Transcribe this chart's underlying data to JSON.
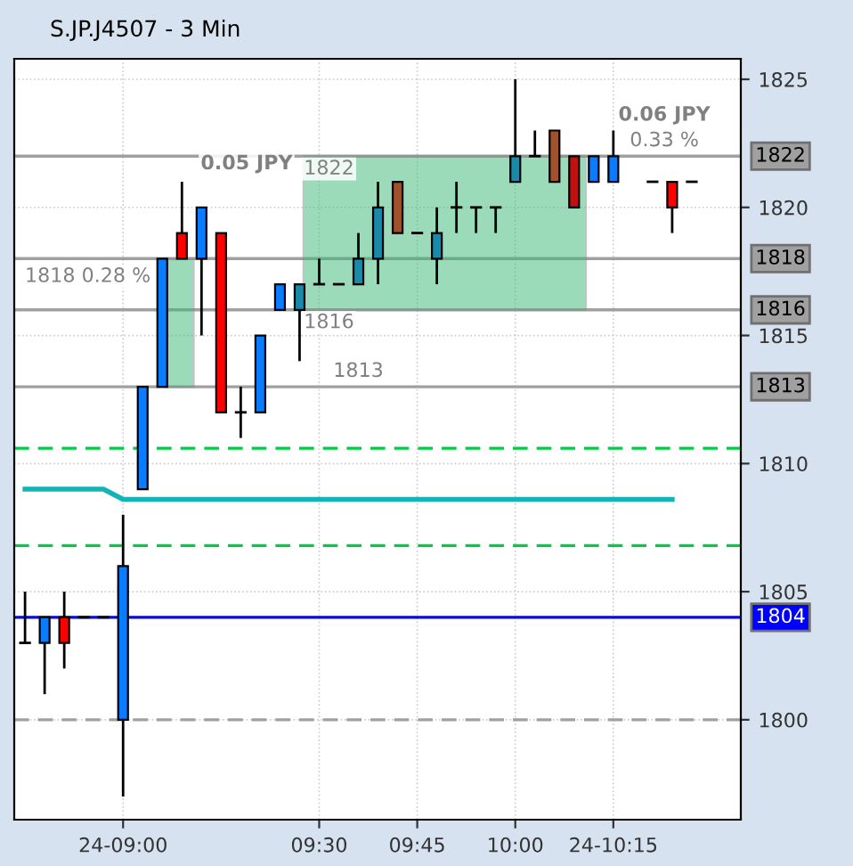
{
  "chart_data": {
    "type": "candlestick",
    "title": "S.JP.J4507 - 3 Min",
    "categories": [
      null,
      null,
      null,
      null,
      null,
      "24-09:00",
      null,
      null,
      null,
      null,
      null,
      null,
      null,
      null,
      null,
      "09:30",
      null,
      null,
      null,
      null,
      "09:45",
      null,
      null,
      null,
      null,
      "10:00",
      null,
      null,
      null,
      null,
      "24-10:15",
      null,
      null,
      null,
      null
    ],
    "ohlc": [
      [
        1803,
        1805,
        1803,
        1803
      ],
      [
        1803,
        1804,
        1801,
        1804
      ],
      [
        1804,
        1805,
        1802,
        1803
      ],
      [
        1804,
        1804,
        1804,
        1804
      ],
      [
        1804,
        1804,
        1804,
        1804
      ],
      [
        1800,
        1808,
        1797,
        1806
      ],
      [
        1809,
        1813,
        1809,
        1813
      ],
      [
        1813,
        1818,
        1813,
        1818
      ],
      [
        1819,
        1821,
        1818,
        1818
      ],
      [
        1818,
        1820,
        1815,
        1820
      ],
      [
        1819,
        1819,
        1812,
        1812
      ],
      [
        1812,
        1813,
        1811,
        1812
      ],
      [
        1812,
        1815,
        1812,
        1815
      ],
      [
        1816,
        1817,
        1816,
        1817
      ],
      [
        1816,
        1817,
        1814,
        1817
      ],
      [
        1817,
        1818,
        1817,
        1817
      ],
      [
        1817,
        1817,
        1817,
        1817
      ],
      [
        1817,
        1819,
        1817,
        1818
      ],
      [
        1818,
        1821,
        1817,
        1820
      ],
      [
        1821,
        1821,
        1819,
        1819
      ],
      [
        1819,
        1819,
        1819,
        1819
      ],
      [
        1818,
        1820,
        1817,
        1819
      ],
      [
        1820,
        1821,
        1819,
        1820
      ],
      [
        1820,
        1820,
        1819,
        1820
      ],
      [
        1820,
        1820,
        1819,
        1820
      ],
      [
        1821,
        1825,
        1821,
        1822
      ],
      [
        1822,
        1823,
        1822,
        1822
      ],
      [
        1823,
        1823,
        1821,
        1821
      ],
      [
        1822,
        1822,
        1820,
        1820
      ],
      [
        1821,
        1822,
        1821,
        1822
      ],
      [
        1821,
        1823,
        1821,
        1822
      ],
      null,
      [
        1821,
        1821,
        1821,
        1821
      ],
      [
        1821,
        1821,
        1819,
        1820
      ],
      [
        1821,
        1821,
        1821,
        1821
      ]
    ],
    "colors": [
      "#000000",
      "#0a7cff",
      "#ff0000",
      "#000000",
      "#000000",
      "#0a7cff",
      "#0a7cff",
      "#0a7cff",
      "#ff0000",
      "#0a7cff",
      "#ff0000",
      "#000000",
      "#0a7cff",
      "#0a7cff",
      "#1a8aa8",
      "#000000",
      "#000000",
      "#1a8aa8",
      "#1a8aa8",
      "#a0522d",
      "#000000",
      "#1a8aa8",
      "#000000",
      "#000000",
      "#000000",
      "#1a8aa8",
      "#000000",
      "#a0522d",
      "#c01010",
      "#0a7cff",
      "#0a7cff",
      null,
      "#000000",
      "#ff0000",
      "#000000"
    ],
    "series": [
      {
        "type": "line",
        "color": "#14b4b4",
        "values": [
          1809,
          1809,
          1809,
          1809,
          1809,
          1808.6,
          1808.6,
          1808.6,
          1808.6,
          1808.6,
          1808.6,
          1808.6,
          1808.6,
          1808.6,
          1808.6,
          1808.6,
          1808.6,
          1808.6,
          1808.6,
          1808.6,
          1808.6,
          1808.6,
          1808.6,
          1808.6,
          1808.6,
          1808.6,
          1808.6,
          1808.6,
          1808.6,
          1808.6,
          1808.6,
          1808.6,
          1808.6,
          1808.6,
          null
        ]
      }
    ],
    "ref_lines": [
      {
        "axis": "y",
        "value": 1804,
        "label": "1804",
        "color": "#0000ff",
        "line_style": "solid"
      },
      {
        "axis": "y",
        "value": 1800,
        "color": "#a0a0a0",
        "line_style": "dashed"
      },
      {
        "axis": "y",
        "value": 1810.6,
        "color": "#00cc44",
        "line_style": "dashed"
      },
      {
        "axis": "y",
        "value": 1806.8,
        "color": "#00cc44",
        "line_style": "dashed"
      },
      {
        "axis": "y",
        "value": 1822,
        "label": "1822",
        "color": "#a0a0a0",
        "line_style": "solid"
      },
      {
        "axis": "y",
        "value": 1818,
        "label": "1818",
        "color": "#a0a0a0",
        "line_style": "solid"
      },
      {
        "axis": "y",
        "value": 1816,
        "label": "1816",
        "color": "#a0a0a0",
        "line_style": "solid"
      },
      {
        "axis": "y",
        "value": 1813,
        "label": "1813",
        "color": "#a0a0a0",
        "line_style": "solid"
      }
    ],
    "annotations": [
      "0.05 JPY",
      "1818 0.28 %",
      "1813",
      "1822",
      "1816",
      "0.06 JPY",
      "0.33 %"
    ],
    "ylim": [
      1796.1,
      1825.8
    ],
    "yticks": [
      1800,
      1805,
      1810,
      1815,
      1820,
      1825
    ],
    "grid": true,
    "legend": false
  }
}
